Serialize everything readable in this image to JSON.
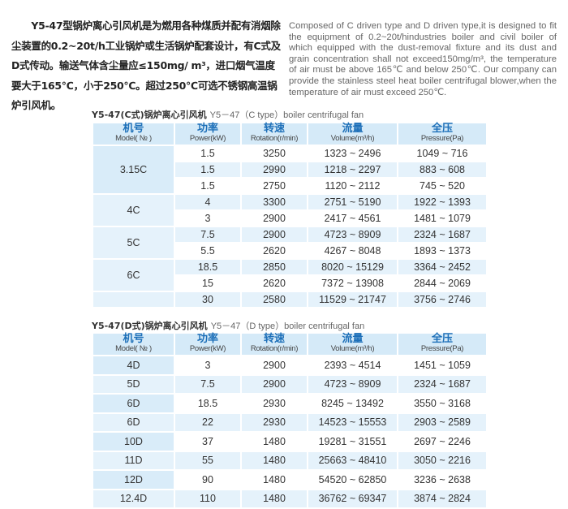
{
  "intro_cn": "　　Y5-47型锅炉离心引风机是为燃用各种煤质并配有消烟除尘装置的0.2~20t/h工业锅炉或生活锅炉配套设计，有C式及D式传动。输送气体含尘量应≤150mg/ m³，进口烟气温度要大于165℃，小于250℃。超过250℃可选不锈钢高温锅炉引风机。",
  "intro_en": "Composed of C driven type and D driven type,it is designed to fit the equipment of 0.2~20t/hindustries boiler and civil boiler of which equipped with the dust-removal fixture and its dust and grain concentration shall not exceed150mg/m³, the temperature of air must be above 165℃ and below 250℃. Our company can provide the stainless steel heat boiler centrifugal blower,when the temperature of air must exceed 250℃.",
  "headers": [
    {
      "cn": "机号",
      "en": "Model( № )"
    },
    {
      "cn": "功率",
      "en": "Power(kW)"
    },
    {
      "cn": "转速",
      "en": "Rotation(r/min)"
    },
    {
      "cn": "流量",
      "en": "Volume(m³/h)"
    },
    {
      "cn": "全压",
      "en": "Pressure(Pa)"
    }
  ],
  "table_c": {
    "title_cn": "Y5-47(C式)锅炉离心引风机",
    "title_en": "Y5－47（C type）boiler centrifugal fan",
    "groups": [
      {
        "model": "3.15C",
        "rows": [
          [
            "1.5",
            "3250",
            "1323 ~ 2496",
            "1049 ~ 716"
          ],
          [
            "1.5",
            "2990",
            "1218 ~ 2297",
            "883 ~ 608"
          ],
          [
            "1.5",
            "2750",
            "1120 ~ 2112",
            "745 ~ 520"
          ]
        ]
      },
      {
        "model": "4C",
        "rows": [
          [
            "4",
            "3300",
            "2751 ~ 5190",
            "1922 ~ 1393"
          ],
          [
            "3",
            "2900",
            "2417 ~ 4561",
            "1481 ~ 1079"
          ]
        ]
      },
      {
        "model": "5C",
        "rows": [
          [
            "7.5",
            "2900",
            "4723 ~ 8909",
            "2324 ~ 1687"
          ],
          [
            "5.5",
            "2620",
            "4267 ~ 8048",
            "1893 ~ 1373"
          ]
        ]
      },
      {
        "model": "6C",
        "rows": [
          [
            "18.5",
            "2850",
            "8020 ~ 15129",
            "3364 ~ 2452"
          ],
          [
            "15",
            "2620",
            "7372 ~ 13908",
            "2844 ~ 2069"
          ]
        ]
      },
      {
        "model": "",
        "rows": [
          [
            "30",
            "2580",
            "11529 ~ 21747",
            "3756 ~ 2746"
          ]
        ]
      }
    ]
  },
  "table_d": {
    "title_cn": "Y5-47(D式)锅炉离心引风机",
    "title_en": "Y5－47（D type）boiler centrifugal fan",
    "rows": [
      [
        "4D",
        "3",
        "2900",
        "2393 ~ 4514",
        "1451 ~ 1059"
      ],
      [
        "5D",
        "7.5",
        "2900",
        "4723 ~ 8909",
        "2324 ~ 1687"
      ],
      [
        "6D",
        "18.5",
        "2930",
        "8245 ~ 13492",
        "3550 ~ 3168"
      ],
      [
        "6D",
        "22",
        "2930",
        "14523 ~ 15553",
        "2903 ~ 2589"
      ],
      [
        "10D",
        "37",
        "1480",
        "19281 ~ 31551",
        "2697 ~ 2246"
      ],
      [
        "11D",
        "55",
        "1480",
        "25663 ~ 48410",
        "3050 ~ 2216"
      ],
      [
        "12D",
        "90",
        "1480",
        "54520 ~ 62850",
        "3236 ~ 2638"
      ],
      [
        "12.4D",
        "110",
        "1480",
        "36762 ~ 69347",
        "3874 ~ 2824"
      ]
    ]
  }
}
